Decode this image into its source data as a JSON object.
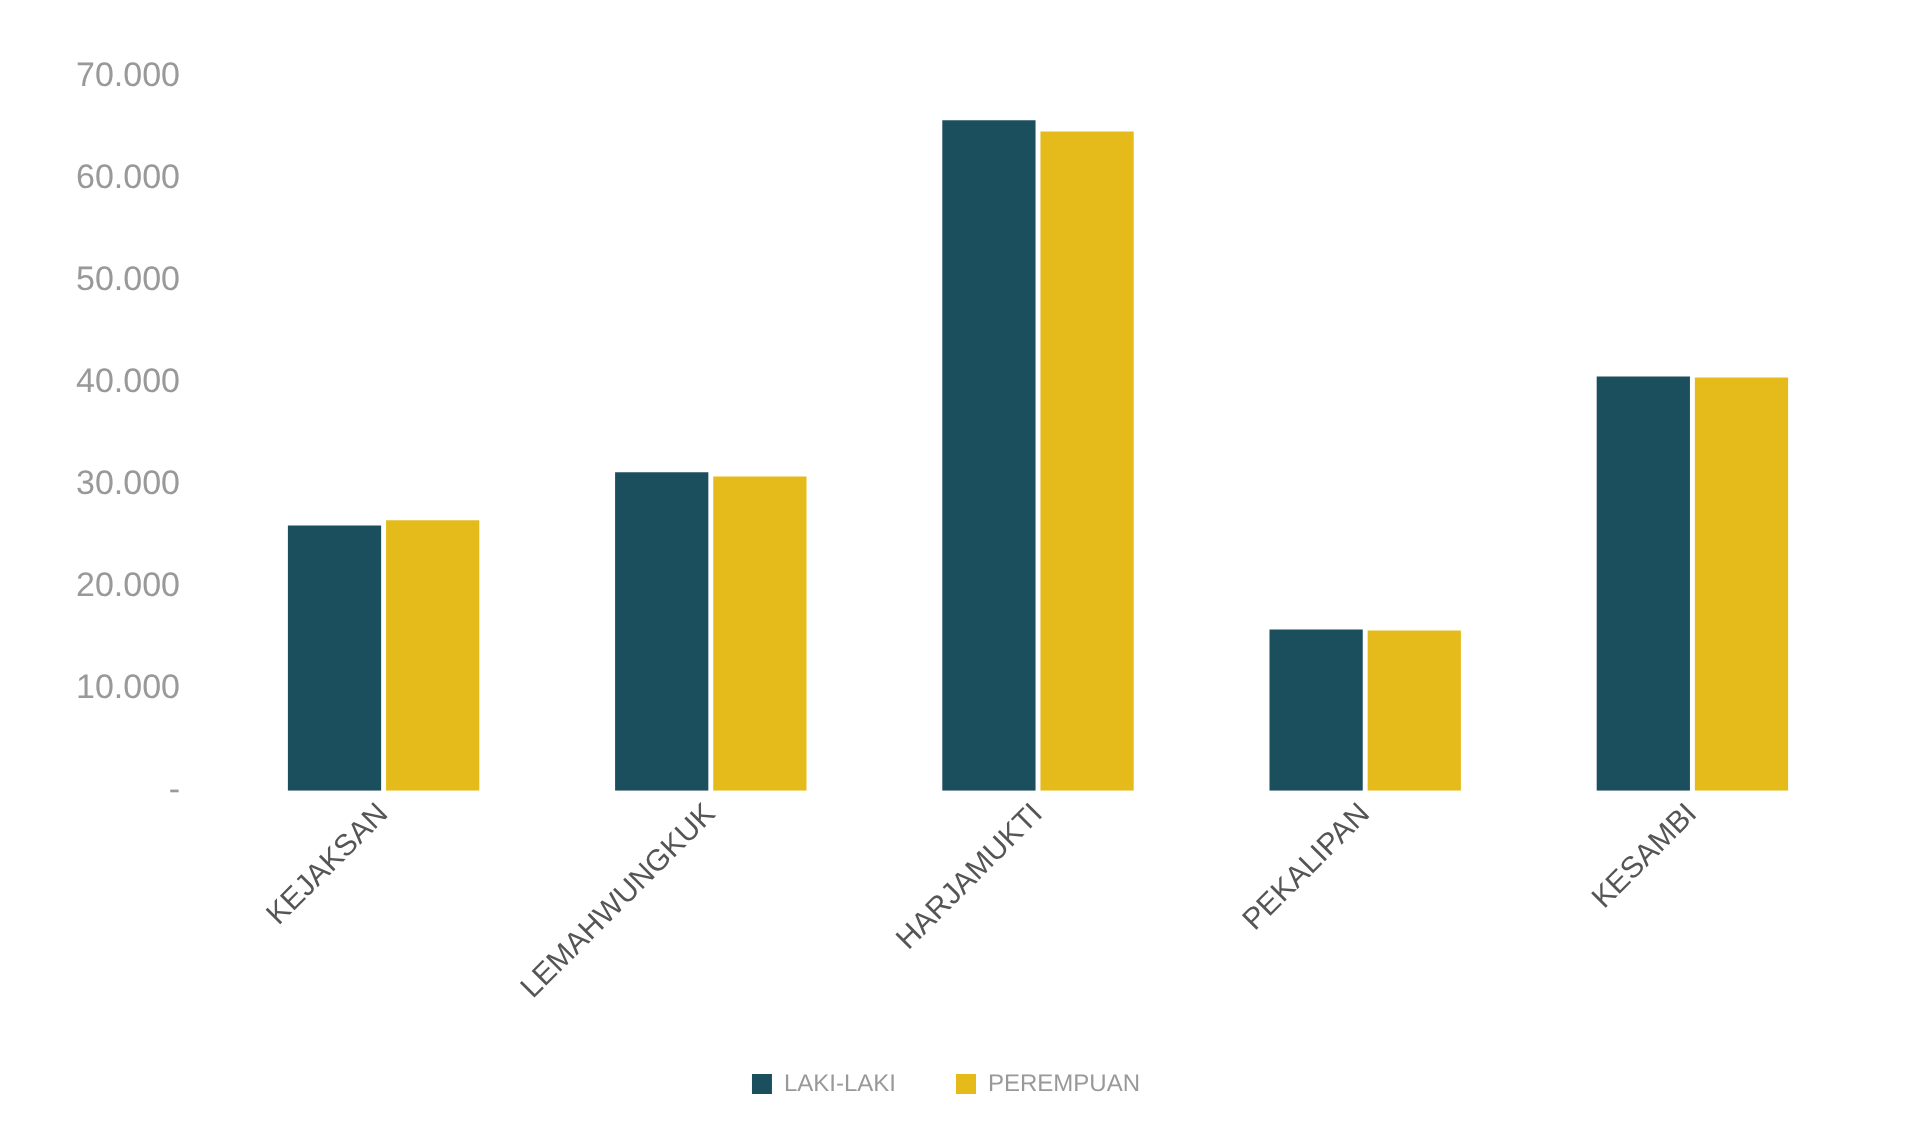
{
  "chart_data": {
    "type": "bar",
    "categories": [
      "KEJAKSAN",
      "LEMAHWUNGKUK",
      "HARJAMUKTI",
      "PEKALIPAN",
      "KESAMBI"
    ],
    "series": [
      {
        "name": "LAKI-LAKI",
        "color": "#1b4f5e",
        "values": [
          26000,
          31200,
          65700,
          15800,
          40600
        ]
      },
      {
        "name": "PEREMPUAN",
        "color": "#e5bb1c",
        "values": [
          26500,
          30800,
          64600,
          15700,
          40500
        ]
      }
    ],
    "ylim": [
      0,
      70000
    ],
    "yticks": [
      {
        "value": 0,
        "label": "-"
      },
      {
        "value": 10000,
        "label": "10.000"
      },
      {
        "value": 20000,
        "label": "20.000"
      },
      {
        "value": 30000,
        "label": "30.000"
      },
      {
        "value": 40000,
        "label": "40.000"
      },
      {
        "value": 50000,
        "label": "50.000"
      },
      {
        "value": 60000,
        "label": "60.000"
      },
      {
        "value": 70000,
        "label": "70.000"
      }
    ],
    "grid": false,
    "legend": "bottom"
  }
}
